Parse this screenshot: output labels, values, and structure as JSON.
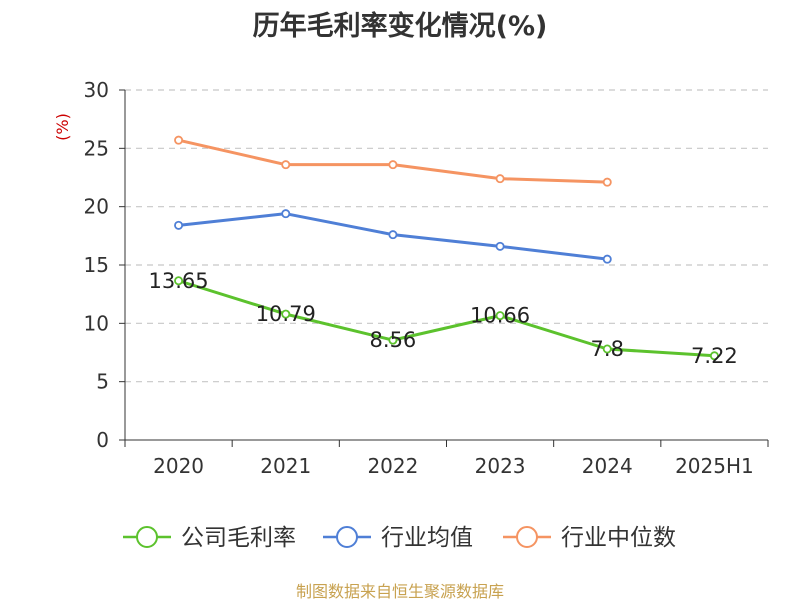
{
  "chart_data": {
    "type": "line",
    "title": "历年毛利率变化情况(%)",
    "ylabel": "(%)",
    "xlabel": "",
    "categories": [
      "2020",
      "2021",
      "2022",
      "2023",
      "2024",
      "2025H1"
    ],
    "ylim": [
      0,
      30
    ],
    "yticks": [
      0,
      5,
      10,
      15,
      20,
      25,
      30
    ],
    "grid": true,
    "legend_position": "bottom",
    "series": [
      {
        "name": "公司毛利率",
        "color": "#5cc22d",
        "values": [
          13.65,
          10.79,
          8.56,
          10.66,
          7.8,
          7.22
        ],
        "labels": [
          "13.65",
          "10.79",
          "8.56",
          "10.66",
          "7.8",
          "7.22"
        ],
        "show_labels": true
      },
      {
        "name": "行业均值",
        "color": "#4f7fd6",
        "values": [
          18.4,
          19.4,
          17.6,
          16.6,
          15.5,
          null
        ],
        "show_labels": false
      },
      {
        "name": "行业中位数",
        "color": "#f59462",
        "values": [
          25.7,
          23.6,
          23.6,
          22.4,
          22.1,
          null
        ],
        "show_labels": false
      }
    ]
  },
  "footer": {
    "source": "制图数据来自恒生聚源数据库"
  }
}
